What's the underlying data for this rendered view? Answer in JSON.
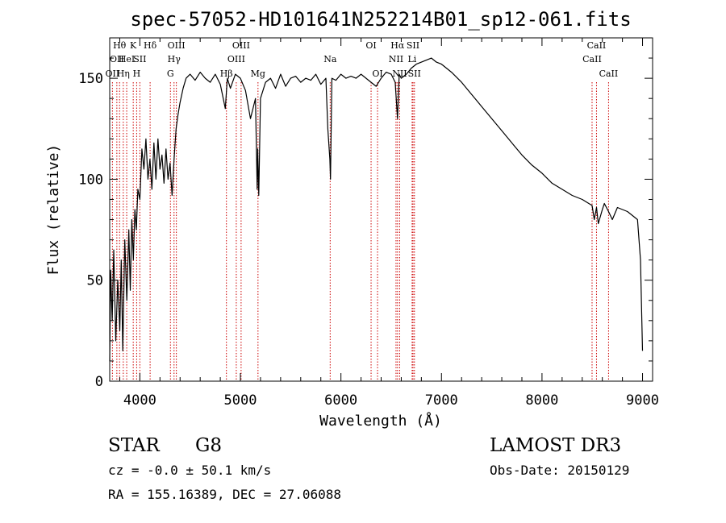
{
  "chart_data": {
    "type": "line",
    "title": "spec-57052-HD101641N252214B01_sp12-061.fits",
    "xlabel": "Wavelength (Å)",
    "ylabel": "Flux (relative)",
    "xlim": [
      3700,
      9100
    ],
    "ylim": [
      0,
      170
    ],
    "x_ticks": [
      4000,
      5000,
      6000,
      7000,
      8000,
      9000
    ],
    "y_ticks": [
      0,
      50,
      100,
      150
    ],
    "grid": false,
    "line_color": "#000000",
    "marker_color": "#cc0000",
    "series": [
      {
        "x": [
          3700,
          3710,
          3725,
          3740,
          3760,
          3780,
          3800,
          3815,
          3830,
          3850,
          3870,
          3890,
          3905,
          3920,
          3935,
          3950,
          3965,
          3980,
          4000,
          4020,
          4040,
          4060,
          4080,
          4100,
          4120,
          4140,
          4160,
          4180,
          4200,
          4220,
          4240,
          4260,
          4280,
          4300,
          4320,
          4340,
          4360,
          4380,
          4400,
          4430,
          4460,
          4500,
          4550,
          4600,
          4650,
          4700,
          4750,
          4800,
          4850,
          4870,
          4900,
          4950,
          5000,
          5050,
          5100,
          5150,
          5167,
          5172,
          5183,
          5200,
          5250,
          5300,
          5350,
          5400,
          5450,
          5500,
          5550,
          5600,
          5650,
          5700,
          5750,
          5800,
          5850,
          5870,
          5890,
          5896,
          5910,
          5950,
          6000,
          6050,
          6100,
          6150,
          6200,
          6250,
          6300,
          6350,
          6400,
          6450,
          6500,
          6540,
          6563,
          6580,
          6600,
          6650,
          6700,
          6750,
          6800,
          6850,
          6900,
          6950,
          7000,
          7100,
          7200,
          7300,
          7400,
          7500,
          7600,
          7700,
          7800,
          7900,
          8000,
          8100,
          8200,
          8300,
          8400,
          8498,
          8520,
          8542,
          8560,
          8600,
          8620,
          8662,
          8700,
          8750,
          8800,
          8850,
          8900,
          8950,
          8980,
          9000
        ],
        "y": [
          10,
          55,
          30,
          65,
          20,
          50,
          25,
          60,
          15,
          70,
          40,
          75,
          45,
          80,
          60,
          85,
          75,
          95,
          90,
          115,
          105,
          120,
          100,
          110,
          95,
          118,
          100,
          120,
          105,
          112,
          98,
          115,
          100,
          108,
          92,
          110,
          125,
          132,
          138,
          145,
          150,
          152,
          149,
          153,
          150,
          148,
          152,
          147,
          135,
          150,
          145,
          152,
          150,
          144,
          130,
          140,
          95,
          115,
          92,
          140,
          148,
          150,
          145,
          152,
          146,
          150,
          151,
          148,
          150,
          149,
          152,
          147,
          150,
          125,
          110,
          100,
          150,
          149,
          152,
          150,
          151,
          150,
          152,
          150,
          148,
          146,
          150,
          153,
          152,
          148,
          130,
          152,
          150,
          152,
          155,
          157,
          158,
          159,
          160,
          158,
          157,
          153,
          148,
          142,
          136,
          130,
          124,
          118,
          112,
          107,
          103,
          98,
          95,
          92,
          90,
          87,
          80,
          86,
          78,
          85,
          88,
          84,
          80,
          86,
          85,
          84,
          82,
          80,
          60,
          15
        ]
      }
    ],
    "line_markers": [
      {
        "wl": 3727,
        "row": 2,
        "label": "OII"
      },
      {
        "wl": 3771,
        "row": 1,
        "label": "OII"
      },
      {
        "wl": 3798,
        "row": 0,
        "label": "Hθ"
      },
      {
        "wl": 3835,
        "row": 2,
        "label": "Hη"
      },
      {
        "wl": 3869,
        "row": 1,
        "label": "HeI"
      },
      {
        "wl": 3934,
        "row": 0,
        "label": "K"
      },
      {
        "wl": 3968,
        "row": 2,
        "label": "H"
      },
      {
        "wl": 4000,
        "row": 1,
        "label": "SII"
      },
      {
        "wl": 4102,
        "row": 0,
        "label": "Hδ"
      },
      {
        "wl": 4304,
        "row": 2,
        "label": "G"
      },
      {
        "wl": 4340,
        "row": 1,
        "label": "Hγ"
      },
      {
        "wl": 4363,
        "row": 0,
        "label": "OIII"
      },
      {
        "wl": 4861,
        "row": 2,
        "label": "Hβ"
      },
      {
        "wl": 4959,
        "row": 1,
        "label": "OIII"
      },
      {
        "wl": 5007,
        "row": 0,
        "label": "OIII"
      },
      {
        "wl": 5175,
        "row": 2,
        "label": "Mg"
      },
      {
        "wl": 5893,
        "row": 1,
        "label": "Na"
      },
      {
        "wl": 6300,
        "row": 0,
        "label": "OI"
      },
      {
        "wl": 6364,
        "row": 2,
        "label": "OI"
      },
      {
        "wl": 6548,
        "row": 1,
        "label": "NII"
      },
      {
        "wl": 6563,
        "row": 0,
        "label": "Hα"
      },
      {
        "wl": 6584,
        "row": 2,
        "label": "NII"
      },
      {
        "wl": 6708,
        "row": 1,
        "label": "Li"
      },
      {
        "wl": 6717,
        "row": 0,
        "label": "SII"
      },
      {
        "wl": 6731,
        "row": 2,
        "label": "SII"
      },
      {
        "wl": 8498,
        "row": 1,
        "label": "CaII"
      },
      {
        "wl": 8542,
        "row": 0,
        "label": "CaII"
      },
      {
        "wl": 8662,
        "row": 2,
        "label": "CaII"
      }
    ]
  },
  "info": {
    "object_class": "STAR",
    "subclass": "G8",
    "survey": "LAMOST DR3",
    "redshift_line": "cz = -0.0 ± 50.1 km/s",
    "obs_date": "Obs-Date: 20150129",
    "coords": "RA = 155.16389, DEC =  27.06088"
  }
}
